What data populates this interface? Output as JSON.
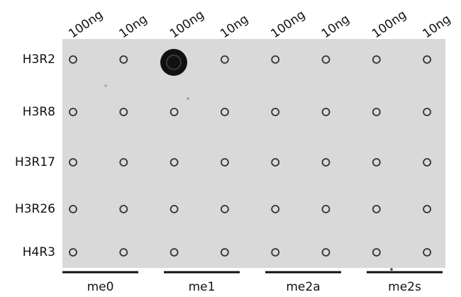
{
  "columns": [
    "100ng",
    "10ng",
    "100ng",
    "10ng",
    "100ng",
    "10ng",
    "100ng",
    "10ng"
  ],
  "rows": [
    "H3R2",
    "H3R8",
    "H3R17",
    "H3R26",
    "H4R3"
  ],
  "groups": [
    "me0",
    "me1",
    "me2a",
    "me2s"
  ]
}
